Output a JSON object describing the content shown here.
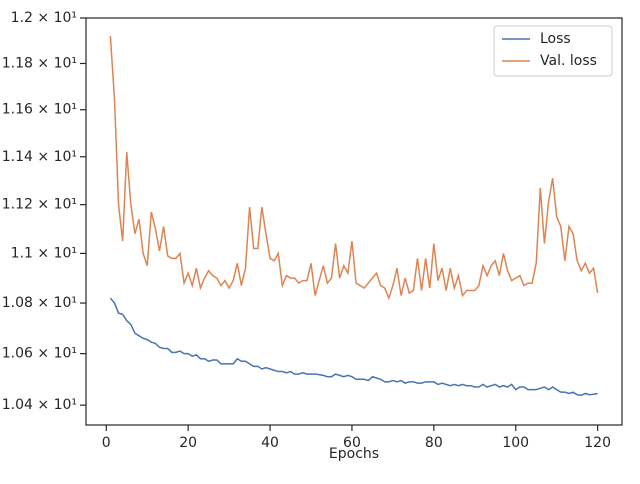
{
  "chart_data": {
    "type": "line",
    "xlabel": "Epochs",
    "x": [
      1,
      2,
      3,
      4,
      5,
      6,
      7,
      8,
      9,
      10,
      11,
      12,
      13,
      14,
      15,
      16,
      17,
      18,
      19,
      20,
      21,
      22,
      23,
      24,
      25,
      26,
      27,
      28,
      29,
      30,
      31,
      32,
      33,
      34,
      35,
      36,
      37,
      38,
      39,
      40,
      41,
      42,
      43,
      44,
      45,
      46,
      47,
      48,
      49,
      50,
      51,
      52,
      53,
      54,
      55,
      56,
      57,
      58,
      59,
      60,
      61,
      62,
      63,
      64,
      65,
      66,
      67,
      68,
      69,
      70,
      71,
      72,
      73,
      74,
      75,
      76,
      77,
      78,
      79,
      80,
      81,
      82,
      83,
      84,
      85,
      86,
      87,
      88,
      89,
      90,
      91,
      92,
      93,
      94,
      95,
      96,
      97,
      98,
      99,
      100,
      101,
      102,
      103,
      104,
      105,
      106,
      107,
      108,
      109,
      110,
      111,
      112,
      113,
      114,
      115,
      116,
      117,
      118,
      119,
      120
    ],
    "series": [
      {
        "name": "Loss",
        "color": "#4c72b0",
        "values": [
          10.82,
          10.8,
          10.76,
          10.755,
          10.73,
          10.715,
          10.68,
          10.67,
          10.66,
          10.655,
          10.645,
          10.64,
          10.625,
          10.62,
          10.62,
          10.605,
          10.605,
          10.61,
          10.6,
          10.6,
          10.59,
          10.595,
          10.58,
          10.58,
          10.57,
          10.575,
          10.575,
          10.56,
          10.56,
          10.56,
          10.56,
          10.58,
          10.57,
          10.57,
          10.56,
          10.55,
          10.55,
          10.54,
          10.545,
          10.54,
          10.535,
          10.53,
          10.53,
          10.525,
          10.53,
          10.52,
          10.52,
          10.525,
          10.52,
          10.52,
          10.52,
          10.518,
          10.515,
          10.51,
          10.51,
          10.52,
          10.515,
          10.51,
          10.515,
          10.51,
          10.5,
          10.5,
          10.5,
          10.495,
          10.51,
          10.505,
          10.5,
          10.49,
          10.49,
          10.495,
          10.49,
          10.495,
          10.485,
          10.49,
          10.49,
          10.485,
          10.485,
          10.49,
          10.49,
          10.49,
          10.48,
          10.485,
          10.48,
          10.475,
          10.48,
          10.475,
          10.48,
          10.475,
          10.475,
          10.47,
          10.47,
          10.48,
          10.47,
          10.475,
          10.48,
          10.47,
          10.475,
          10.47,
          10.48,
          10.46,
          10.47,
          10.47,
          10.46,
          10.46,
          10.46,
          10.465,
          10.47,
          10.46,
          10.47,
          10.46,
          10.45,
          10.45,
          10.445,
          10.45,
          10.44,
          10.438,
          10.445,
          10.44,
          10.442,
          10.445
        ]
      },
      {
        "name": "Val. loss",
        "color": "#dd8452",
        "values": [
          11.92,
          11.65,
          11.2,
          11.05,
          11.42,
          11.2,
          11.08,
          11.14,
          11.0,
          10.95,
          11.17,
          11.1,
          11.01,
          11.11,
          10.99,
          10.98,
          10.98,
          11.0,
          10.88,
          10.92,
          10.87,
          10.94,
          10.86,
          10.9,
          10.93,
          10.91,
          10.9,
          10.87,
          10.89,
          10.86,
          10.89,
          10.96,
          10.87,
          10.94,
          11.19,
          11.02,
          11.02,
          11.19,
          11.08,
          10.98,
          10.97,
          11.0,
          10.87,
          10.91,
          10.9,
          10.9,
          10.88,
          10.89,
          10.89,
          10.96,
          10.83,
          10.89,
          10.95,
          10.88,
          10.9,
          11.04,
          10.9,
          10.95,
          10.92,
          11.05,
          10.88,
          10.87,
          10.86,
          10.88,
          10.9,
          10.92,
          10.87,
          10.86,
          10.82,
          10.87,
          10.94,
          10.83,
          10.9,
          10.84,
          10.85,
          10.98,
          10.85,
          10.98,
          10.86,
          11.04,
          10.89,
          10.94,
          10.85,
          10.94,
          10.86,
          10.91,
          10.83,
          10.85,
          10.85,
          10.85,
          10.87,
          10.95,
          10.91,
          10.95,
          10.97,
          10.91,
          11.0,
          10.93,
          10.89,
          10.9,
          10.91,
          10.87,
          10.88,
          10.88,
          10.96,
          11.27,
          11.04,
          11.21,
          11.31,
          11.15,
          11.11,
          10.97,
          11.11,
          11.08,
          10.97,
          10.93,
          10.96,
          10.92,
          10.94,
          10.84
        ]
      }
    ],
    "xlim": [
      -4.95,
      125.95
    ],
    "xticks": [
      0,
      20,
      40,
      60,
      80,
      100,
      120
    ],
    "ylim": [
      10.324,
      12.0
    ],
    "yscale": "log",
    "yticks": [
      {
        "value": 10.4,
        "label": "1.04 × 10¹"
      },
      {
        "value": 10.6,
        "label": "1.06 × 10¹"
      },
      {
        "value": 10.8,
        "label": "1.08 × 10¹"
      },
      {
        "value": 11,
        "label": "1.1 × 10¹"
      },
      {
        "value": 11.2,
        "label": "1.12 × 10¹"
      },
      {
        "value": 11.4,
        "label": "1.14 × 10¹"
      },
      {
        "value": 11.6,
        "label": "1.16 × 10¹"
      },
      {
        "value": 11.8,
        "label": "1.18 × 10¹"
      },
      {
        "value": 12,
        "label": "1.2 × 10¹"
      }
    ],
    "legend": "upper right"
  }
}
